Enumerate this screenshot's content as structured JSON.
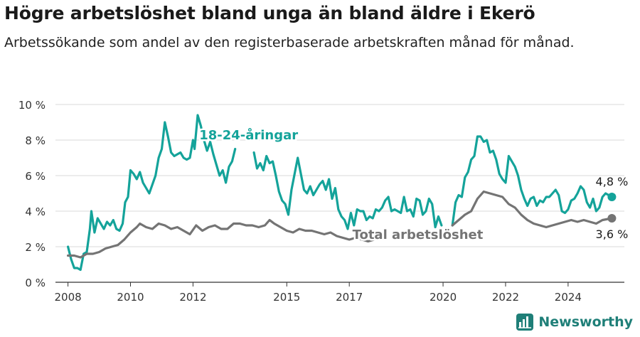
{
  "title": "Högre arbetslöshet bland unga än bland äldre i Ekerö",
  "subtitle": "Arbetssökande som andel av den registerbaserade arbetskraften månad för månad.",
  "brand": {
    "name": "Newsworthy",
    "icon": "newsworthy-logo-icon",
    "color": "#1f7f78"
  },
  "chart_data": {
    "type": "line",
    "xlim": [
      2007.6,
      2025.8
    ],
    "ylim": [
      0,
      10
    ],
    "y_ticks": [
      0,
      2,
      4,
      6,
      8,
      10
    ],
    "y_tick_labels": [
      "0 %",
      "2 %",
      "4 %",
      "6 %",
      "8 %",
      "10 %"
    ],
    "x_ticks": [
      2008,
      2010,
      2012,
      2015,
      2017,
      2020,
      2022,
      2024
    ],
    "x_tick_labels": [
      "2008",
      "2010",
      "2012",
      "2015",
      "2017",
      "2020",
      "2022",
      "2024"
    ],
    "grid": true,
    "series": [
      {
        "name": "18-24-åringar",
        "color": "#14a39a",
        "end_label": "4,8 %",
        "segments": [
          [
            [
              2008.0,
              2.0
            ],
            [
              2008.1,
              1.3
            ],
            [
              2008.2,
              0.8
            ],
            [
              2008.3,
              0.8
            ],
            [
              2008.4,
              0.7
            ],
            [
              2008.5,
              1.6
            ],
            [
              2008.6,
              1.7
            ],
            [
              2008.7,
              3.0
            ],
            [
              2008.75,
              4.0
            ],
            [
              2008.85,
              2.8
            ],
            [
              2008.95,
              3.6
            ],
            [
              2009.05,
              3.3
            ],
            [
              2009.15,
              3.0
            ],
            [
              2009.25,
              3.4
            ],
            [
              2009.35,
              3.2
            ],
            [
              2009.45,
              3.5
            ],
            [
              2009.55,
              3.0
            ],
            [
              2009.65,
              2.9
            ],
            [
              2009.75,
              3.3
            ],
            [
              2009.83,
              4.5
            ],
            [
              2009.92,
              4.8
            ],
            [
              2010.0,
              6.3
            ],
            [
              2010.1,
              6.1
            ],
            [
              2010.2,
              5.8
            ],
            [
              2010.3,
              6.2
            ],
            [
              2010.4,
              5.6
            ],
            [
              2010.5,
              5.3
            ],
            [
              2010.6,
              5.0
            ],
            [
              2010.7,
              5.5
            ],
            [
              2010.8,
              6.0
            ],
            [
              2010.9,
              7.0
            ],
            [
              2011.0,
              7.5
            ],
            [
              2011.1,
              9.0
            ],
            [
              2011.2,
              8.2
            ],
            [
              2011.3,
              7.3
            ],
            [
              2011.4,
              7.1
            ],
            [
              2011.5,
              7.2
            ],
            [
              2011.6,
              7.3
            ],
            [
              2011.7,
              7.0
            ],
            [
              2011.8,
              6.9
            ],
            [
              2011.9,
              7.0
            ],
            [
              2012.0,
              8.0
            ],
            [
              2012.05,
              7.5
            ],
            [
              2012.15,
              9.4
            ],
            [
              2012.25,
              8.8
            ],
            [
              2012.35,
              8.0
            ],
            [
              2012.45,
              7.4
            ],
            [
              2012.55,
              7.9
            ],
            [
              2012.65,
              7.2
            ],
            [
              2012.75,
              6.6
            ],
            [
              2012.85,
              6.0
            ],
            [
              2012.95,
              6.3
            ],
            [
              2013.05,
              5.6
            ],
            [
              2013.15,
              6.5
            ],
            [
              2013.25,
              6.8
            ],
            [
              2013.35,
              7.5
            ]
          ],
          [
            [
              2013.95,
              7.3
            ],
            [
              2014.05,
              6.4
            ],
            [
              2014.15,
              6.7
            ],
            [
              2014.25,
              6.3
            ],
            [
              2014.35,
              7.1
            ],
            [
              2014.45,
              6.7
            ],
            [
              2014.55,
              6.8
            ],
            [
              2014.65,
              6.0
            ],
            [
              2014.75,
              5.1
            ],
            [
              2014.85,
              4.6
            ],
            [
              2014.95,
              4.4
            ],
            [
              2015.05,
              3.8
            ],
            [
              2015.15,
              5.2
            ],
            [
              2015.25,
              6.1
            ],
            [
              2015.35,
              7.0
            ],
            [
              2015.45,
              6.1
            ],
            [
              2015.55,
              5.2
            ],
            [
              2015.65,
              5.0
            ],
            [
              2015.75,
              5.4
            ],
            [
              2015.85,
              4.9
            ],
            [
              2015.95,
              5.2
            ],
            [
              2016.05,
              5.5
            ],
            [
              2016.15,
              5.7
            ],
            [
              2016.25,
              5.2
            ],
            [
              2016.35,
              5.8
            ],
            [
              2016.45,
              4.7
            ],
            [
              2016.55,
              5.3
            ],
            [
              2016.65,
              4.1
            ],
            [
              2016.75,
              3.7
            ],
            [
              2016.85,
              3.5
            ],
            [
              2016.95,
              3.0
            ],
            [
              2017.05,
              3.9
            ],
            [
              2017.15,
              3.2
            ],
            [
              2017.25,
              4.1
            ],
            [
              2017.35,
              4.0
            ],
            [
              2017.45,
              4.0
            ],
            [
              2017.55,
              3.5
            ],
            [
              2017.65,
              3.7
            ],
            [
              2017.75,
              3.6
            ],
            [
              2017.85,
              4.1
            ],
            [
              2017.95,
              4.0
            ],
            [
              2018.05,
              4.2
            ],
            [
              2018.15,
              4.6
            ],
            [
              2018.25,
              4.8
            ],
            [
              2018.35,
              4.0
            ],
            [
              2018.45,
              4.1
            ],
            [
              2018.55,
              4.0
            ],
            [
              2018.65,
              3.9
            ],
            [
              2018.75,
              4.8
            ],
            [
              2018.85,
              4.0
            ],
            [
              2018.95,
              4.1
            ],
            [
              2019.05,
              3.7
            ],
            [
              2019.15,
              4.7
            ],
            [
              2019.25,
              4.6
            ],
            [
              2019.35,
              3.8
            ],
            [
              2019.45,
              4.0
            ],
            [
              2019.55,
              4.7
            ],
            [
              2019.65,
              4.4
            ],
            [
              2019.75,
              3.1
            ],
            [
              2019.85,
              3.7
            ],
            [
              2019.95,
              3.2
            ]
          ],
          [
            [
              2020.3,
              3.2
            ],
            [
              2020.4,
              4.5
            ],
            [
              2020.5,
              4.9
            ],
            [
              2020.6,
              4.8
            ],
            [
              2020.7,
              5.9
            ],
            [
              2020.8,
              6.2
            ],
            [
              2020.9,
              6.9
            ],
            [
              2021.0,
              7.1
            ],
            [
              2021.1,
              8.2
            ],
            [
              2021.2,
              8.2
            ],
            [
              2021.3,
              7.9
            ],
            [
              2021.4,
              8.0
            ],
            [
              2021.5,
              7.3
            ],
            [
              2021.6,
              7.4
            ],
            [
              2021.7,
              6.9
            ],
            [
              2021.8,
              6.1
            ],
            [
              2021.9,
              5.8
            ],
            [
              2022.0,
              5.6
            ],
            [
              2022.1,
              7.1
            ],
            [
              2022.2,
              6.8
            ],
            [
              2022.3,
              6.5
            ],
            [
              2022.4,
              6.0
            ],
            [
              2022.5,
              5.2
            ],
            [
              2022.6,
              4.7
            ],
            [
              2022.7,
              4.3
            ],
            [
              2022.8,
              4.7
            ],
            [
              2022.9,
              4.8
            ],
            [
              2023.0,
              4.3
            ],
            [
              2023.1,
              4.6
            ],
            [
              2023.2,
              4.5
            ],
            [
              2023.3,
              4.8
            ],
            [
              2023.4,
              4.8
            ],
            [
              2023.5,
              5.0
            ],
            [
              2023.6,
              5.2
            ],
            [
              2023.7,
              4.9
            ],
            [
              2023.8,
              4.0
            ],
            [
              2023.9,
              3.9
            ],
            [
              2024.0,
              4.1
            ],
            [
              2024.1,
              4.6
            ],
            [
              2024.2,
              4.7
            ],
            [
              2024.3,
              5.0
            ],
            [
              2024.4,
              5.4
            ],
            [
              2024.5,
              5.2
            ],
            [
              2024.6,
              4.5
            ],
            [
              2024.7,
              4.2
            ],
            [
              2024.8,
              4.7
            ],
            [
              2024.9,
              4.0
            ],
            [
              2025.0,
              4.2
            ],
            [
              2025.1,
              4.8
            ],
            [
              2025.2,
              5.0
            ],
            [
              2025.3,
              4.9
            ],
            [
              2025.4,
              4.8
            ]
          ]
        ]
      },
      {
        "name": "Total arbetslöshet",
        "color": "#747474",
        "end_label": "3,6 %",
        "segments": [
          [
            [
              2008.0,
              1.5
            ],
            [
              2008.2,
              1.5
            ],
            [
              2008.4,
              1.4
            ],
            [
              2008.6,
              1.6
            ],
            [
              2008.8,
              1.6
            ],
            [
              2009.0,
              1.7
            ],
            [
              2009.2,
              1.9
            ],
            [
              2009.4,
              2.0
            ],
            [
              2009.6,
              2.1
            ],
            [
              2009.8,
              2.4
            ],
            [
              2010.0,
              2.8
            ],
            [
              2010.2,
              3.1
            ],
            [
              2010.3,
              3.3
            ],
            [
              2010.5,
              3.1
            ],
            [
              2010.7,
              3.0
            ],
            [
              2010.9,
              3.3
            ],
            [
              2011.1,
              3.2
            ],
            [
              2011.3,
              3.0
            ],
            [
              2011.5,
              3.1
            ],
            [
              2011.7,
              2.9
            ],
            [
              2011.9,
              2.7
            ],
            [
              2012.1,
              3.2
            ],
            [
              2012.3,
              2.9
            ],
            [
              2012.5,
              3.1
            ],
            [
              2012.7,
              3.2
            ],
            [
              2012.9,
              3.0
            ],
            [
              2013.1,
              3.0
            ],
            [
              2013.3,
              3.3
            ],
            [
              2013.5,
              3.3
            ],
            [
              2013.7,
              3.2
            ],
            [
              2013.9,
              3.2
            ],
            [
              2014.1,
              3.1
            ],
            [
              2014.3,
              3.2
            ],
            [
              2014.45,
              3.5
            ],
            [
              2014.6,
              3.3
            ],
            [
              2014.8,
              3.1
            ],
            [
              2015.0,
              2.9
            ],
            [
              2015.2,
              2.8
            ],
            [
              2015.4,
              3.0
            ],
            [
              2015.6,
              2.9
            ],
            [
              2015.8,
              2.9
            ],
            [
              2016.0,
              2.8
            ],
            [
              2016.2,
              2.7
            ],
            [
              2016.4,
              2.8
            ],
            [
              2016.6,
              2.6
            ],
            [
              2016.8,
              2.5
            ],
            [
              2017.0,
              2.4
            ],
            [
              2017.2,
              2.5
            ],
            [
              2017.4,
              2.4
            ],
            [
              2017.6,
              2.3
            ],
            [
              2017.8,
              2.4
            ]
          ],
          [
            [
              2020.3,
              3.2
            ],
            [
              2020.5,
              3.5
            ],
            [
              2020.7,
              3.8
            ],
            [
              2020.9,
              4.0
            ],
            [
              2021.1,
              4.7
            ],
            [
              2021.3,
              5.1
            ],
            [
              2021.5,
              5.0
            ],
            [
              2021.7,
              4.9
            ],
            [
              2021.9,
              4.8
            ],
            [
              2022.1,
              4.4
            ],
            [
              2022.3,
              4.2
            ],
            [
              2022.5,
              3.8
            ],
            [
              2022.7,
              3.5
            ],
            [
              2022.9,
              3.3
            ],
            [
              2023.1,
              3.2
            ],
            [
              2023.3,
              3.1
            ],
            [
              2023.5,
              3.2
            ],
            [
              2023.7,
              3.3
            ],
            [
              2023.9,
              3.4
            ],
            [
              2024.1,
              3.5
            ],
            [
              2024.3,
              3.4
            ],
            [
              2024.5,
              3.5
            ],
            [
              2024.7,
              3.4
            ],
            [
              2024.9,
              3.3
            ],
            [
              2025.1,
              3.5
            ],
            [
              2025.4,
              3.6
            ]
          ]
        ]
      }
    ]
  }
}
